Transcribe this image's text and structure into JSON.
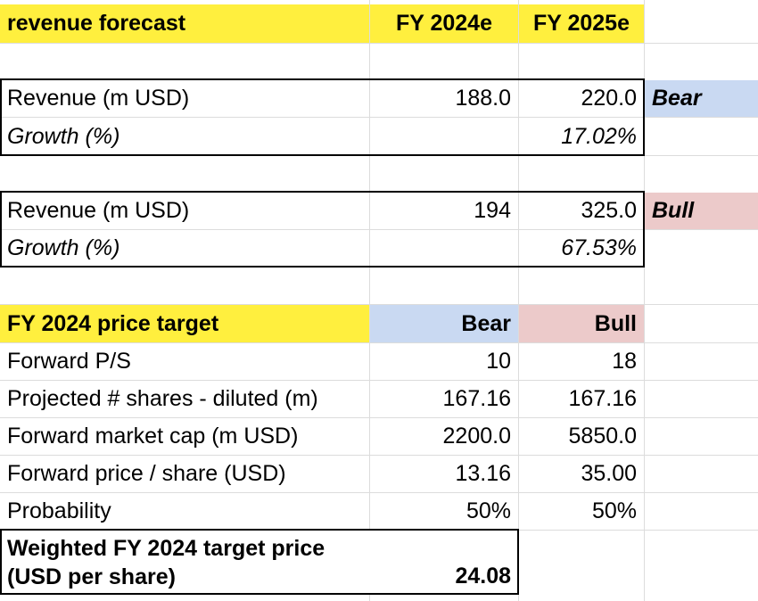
{
  "forecast": {
    "title": "revenue forecast",
    "col1": "FY 2024e",
    "col2": "FY 2025e",
    "bear_block": {
      "revenue_label": "Revenue (m USD)",
      "revenue_2024": "188.0",
      "revenue_2025": "220.0",
      "scenario": "Bear",
      "growth_label": "Growth (%)",
      "growth_2025": "17.02%"
    },
    "bull_block": {
      "revenue_label": "Revenue (m USD)",
      "revenue_2024": "194",
      "revenue_2025": "325.0",
      "scenario": "Bull",
      "growth_label": "Growth (%)",
      "growth_2025": "67.53%"
    }
  },
  "price_target": {
    "title": "FY 2024 price target",
    "col_bear": "Bear",
    "col_bull": "Bull",
    "rows": [
      {
        "label": "Forward P/S",
        "bear": "10",
        "bull": "18"
      },
      {
        "label": "Projected # shares - diluted (m)",
        "bear": "167.16",
        "bull": "167.16"
      },
      {
        "label": "Forward market cap (m USD)",
        "bear": "2200.0",
        "bull": "5850.0"
      },
      {
        "label": "Forward price / share (USD)",
        "bear": "13.16",
        "bull": "35.00"
      },
      {
        "label": "Probability",
        "bear": "50%",
        "bull": "50%"
      }
    ],
    "weighted_label": "Weighted FY 2024 target price (USD per share)",
    "weighted_value": "24.08"
  },
  "colors": {
    "header_yellow": "#ffef3e",
    "bear_blue": "#c9d9f2",
    "bull_pink": "#eccaca",
    "gridline": "#dcdcdc"
  }
}
